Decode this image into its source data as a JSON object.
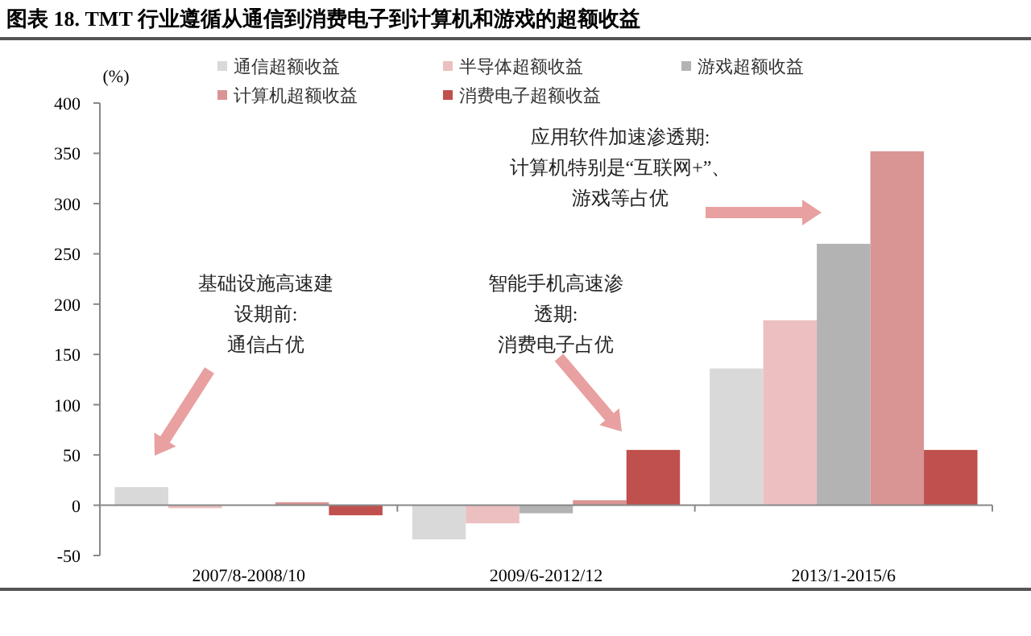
{
  "chart_data": {
    "type": "bar",
    "title": "图表 18.   TMT 行业遵循从通信到消费电子到计算机和游戏的超额收益",
    "ylabel": "(%)",
    "categories": [
      "2007/8-2008/10",
      "2009/6-2012/12",
      "2013/1-2015/6"
    ],
    "series": [
      {
        "name": "通信超额收益",
        "color": "#d9d9d9",
        "values": [
          18,
          -34,
          136
        ]
      },
      {
        "name": "半导体超额收益",
        "color": "#ecc0c0",
        "values": [
          -3,
          -18,
          184
        ]
      },
      {
        "name": "游戏超额收益",
        "color": "#b3b3b3",
        "values": [
          0,
          -8,
          260
        ]
      },
      {
        "name": "计算机超额收益",
        "color": "#d99494",
        "values": [
          3,
          5,
          352
        ]
      },
      {
        "name": "消费电子超额收益",
        "color": "#c0504d",
        "values": [
          -10,
          55,
          55
        ]
      }
    ],
    "ylim": [
      -50,
      400
    ],
    "yticks": [
      -50,
      0,
      50,
      100,
      150,
      200,
      250,
      300,
      350,
      400
    ],
    "legend": "top",
    "annotations": [
      "基础设施高速建设期前:通信占优",
      "智能手机高速渗透期:消费电子占优",
      "应用软件加速渗透期:计算机特别是“互联网+”、游戏等占优"
    ]
  }
}
